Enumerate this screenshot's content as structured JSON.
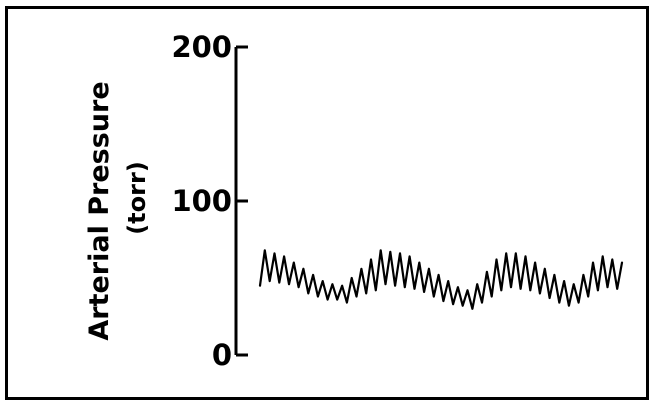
{
  "chart_data": {
    "type": "line",
    "title": "",
    "ylabel": "Arterial Pressure",
    "yunit": "(torr)",
    "xlabel": "",
    "ylim": [
      0,
      200
    ],
    "yticks": [
      {
        "value": 0,
        "label": "0"
      },
      {
        "value": 100,
        "label": "100"
      },
      {
        "value": 200,
        "label": "200"
      }
    ],
    "grid": false,
    "legend": "none",
    "line_color": "#000000",
    "series": [
      {
        "values": [
          45,
          68,
          48,
          66,
          47,
          64,
          46,
          60,
          44,
          56,
          40,
          52,
          38,
          48,
          36,
          46,
          36,
          45,
          34,
          50,
          38,
          56,
          40,
          62,
          42,
          68,
          46,
          67,
          45,
          66,
          44,
          64,
          43,
          60,
          41,
          56,
          38,
          52,
          35,
          48,
          33,
          44,
          32,
          42,
          30,
          46,
          34,
          54,
          38,
          62,
          42,
          66,
          44,
          66,
          43,
          64,
          42,
          60,
          40,
          56,
          37,
          52,
          34,
          48,
          32,
          46,
          34,
          52,
          38,
          60,
          42,
          64,
          44,
          62,
          43,
          60
        ]
      }
    ]
  }
}
